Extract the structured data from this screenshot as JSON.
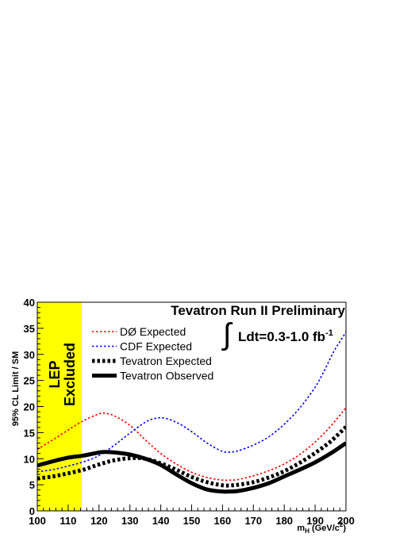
{
  "chart_data": {
    "type": "line",
    "title": "Tevatron Run II Preliminary",
    "annotation_integral": "∫",
    "annotation_lumi": "Ldt=0.3-1.0 fb",
    "annotation_lumi_sup": "-1",
    "xlabel_main": "m",
    "xlabel_sub": "H",
    "xlabel_unit": " (GeV/c",
    "xlabel_sup": "2",
    "xlabel_close": ")",
    "ylabel": "95% CL Limit / SM",
    "xlim": [
      100,
      200
    ],
    "ylim": [
      0,
      40
    ],
    "x_ticks": [
      "100",
      "110",
      "120",
      "130",
      "140",
      "150",
      "160",
      "170",
      "180",
      "190",
      "200"
    ],
    "y_ticks": [
      "0",
      "5",
      "10",
      "15",
      "20",
      "25",
      "30",
      "35",
      "40"
    ],
    "grid": false,
    "legend_position": "upper-left",
    "excluded_band": {
      "x_range": [
        100,
        114.4
      ],
      "label_line1": "LEP",
      "label_line2": "Excluded",
      "color": "#ffff00"
    },
    "series": [
      {
        "name": "DØ Expected",
        "color": "#ff0000",
        "style": "dotted-thin",
        "x": [
          100,
          105,
          110,
          115,
          120,
          122,
          125,
          130,
          135,
          140,
          145,
          150,
          155,
          160,
          163,
          165,
          170,
          175,
          180,
          185,
          190,
          195,
          200
        ],
        "y": [
          11.8,
          13.6,
          15.5,
          17.3,
          18.6,
          18.7,
          18.2,
          16.4,
          13.6,
          11.0,
          9.0,
          7.4,
          6.4,
          5.9,
          5.9,
          6.0,
          6.7,
          7.7,
          9.0,
          10.8,
          13.2,
          16.2,
          19.8
        ]
      },
      {
        "name": "CDF Expected",
        "color": "#0000ff",
        "style": "dotted-thin",
        "x": [
          100,
          105,
          110,
          115,
          120,
          125,
          130,
          135,
          138,
          141,
          145,
          150,
          155,
          160,
          163,
          165,
          170,
          175,
          180,
          185,
          190,
          193,
          196,
          198,
          200
        ],
        "y": [
          7.5,
          7.9,
          8.6,
          9.4,
          10.6,
          12.6,
          14.9,
          17.0,
          17.7,
          17.8,
          17.0,
          15.2,
          13.0,
          11.4,
          11.3,
          11.5,
          12.6,
          14.2,
          16.6,
          19.7,
          23.7,
          26.9,
          30.5,
          32.4,
          34.3
        ]
      },
      {
        "name": "Tevatron Expected",
        "color": "#000000",
        "style": "dotted-thick",
        "x": [
          100,
          105,
          110,
          115,
          120,
          125,
          130,
          135,
          140,
          145,
          150,
          155,
          160,
          163,
          165,
          170,
          175,
          180,
          185,
          190,
          195,
          200
        ],
        "y": [
          6.2,
          6.6,
          7.2,
          7.9,
          8.9,
          9.7,
          10.1,
          10.0,
          9.1,
          7.9,
          6.5,
          5.5,
          4.9,
          4.9,
          5.0,
          5.5,
          6.4,
          7.6,
          9.2,
          11.1,
          13.3,
          16.1
        ]
      },
      {
        "name": "Tevatron Observed",
        "color": "#000000",
        "style": "solid-thick",
        "x": [
          100,
          105,
          110,
          115,
          120,
          122,
          125,
          130,
          135,
          140,
          145,
          150,
          155,
          160,
          162,
          165,
          170,
          175,
          180,
          185,
          190,
          195,
          200
        ],
        "y": [
          8.7,
          9.5,
          10.2,
          10.6,
          11.2,
          11.3,
          11.2,
          10.8,
          10.0,
          8.8,
          7.0,
          5.3,
          4.1,
          3.7,
          3.7,
          3.8,
          4.4,
          5.3,
          6.6,
          7.9,
          9.3,
          11.0,
          13.0
        ]
      }
    ]
  }
}
